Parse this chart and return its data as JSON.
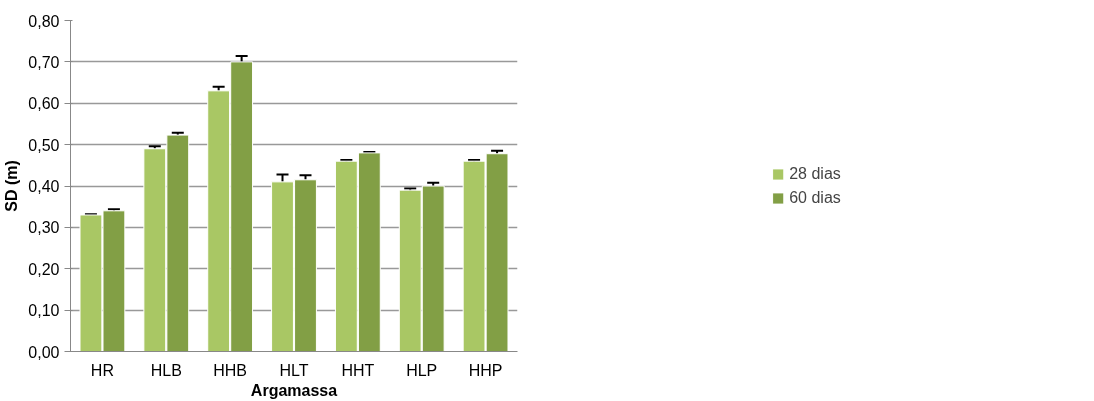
{
  "chart_data": {
    "type": "bar",
    "xlabel": "Argamassa",
    "ylabel": "SD (m)",
    "categories": [
      "HR",
      "HLB",
      "HHB",
      "HLT",
      "HHT",
      "HLP",
      "HHP"
    ],
    "series": [
      {
        "name": "28 dias",
        "color": "#a9c764",
        "values": [
          0.33,
          0.49,
          0.63,
          0.41,
          0.46,
          0.39,
          0.46
        ],
        "errors": [
          0.002,
          0.006,
          0.01,
          0.018,
          0.003,
          0.004,
          0.003
        ]
      },
      {
        "name": "60 dias",
        "color": "#829f45",
        "values": [
          0.34,
          0.523,
          0.7,
          0.415,
          0.48,
          0.4,
          0.478
        ],
        "errors": [
          0.004,
          0.006,
          0.014,
          0.011,
          0.002,
          0.008,
          0.007
        ]
      }
    ],
    "ylim": [
      0,
      0.8
    ],
    "yticks": [
      {
        "value": 0,
        "label": "0,00"
      },
      {
        "value": 0.1,
        "label": "0,10"
      },
      {
        "value": 0.2,
        "label": "0,20"
      },
      {
        "value": 0.3,
        "label": "0,30"
      },
      {
        "value": 0.4,
        "label": "0,40"
      },
      {
        "value": 0.5,
        "label": "0,50"
      },
      {
        "value": 0.6,
        "label": "0,60"
      },
      {
        "value": 0.7,
        "label": "0,70"
      },
      {
        "value": 0.8,
        "label": "0,80"
      }
    ],
    "grid": "y",
    "legend": "right"
  }
}
